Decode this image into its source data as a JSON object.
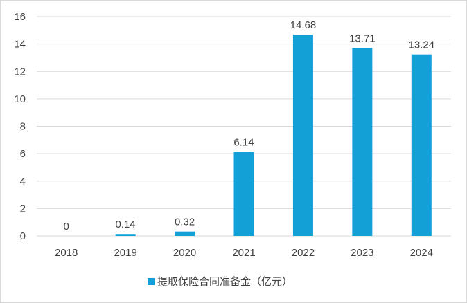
{
  "chart_data": {
    "type": "bar",
    "categories": [
      "2018",
      "2019",
      "2020",
      "2021",
      "2022",
      "2023",
      "2024"
    ],
    "series": [
      {
        "name": "提取保险合同准备金（亿元）",
        "values": [
          0,
          0.14,
          0.32,
          6.14,
          14.68,
          13.71,
          13.24
        ],
        "color": "#12a0d7"
      }
    ],
    "data_labels": [
      "0",
      "0.14",
      "0.32",
      "6.14",
      "14.68",
      "13.71",
      "13.24"
    ],
    "y_ticks": [
      "0",
      "2",
      "4",
      "6",
      "8",
      "10",
      "12",
      "14",
      "16"
    ],
    "ylim": [
      0,
      16
    ],
    "ystep": 2,
    "grid": true,
    "legend_position": "bottom-center",
    "title": "",
    "xlabel": "",
    "ylabel": ""
  }
}
